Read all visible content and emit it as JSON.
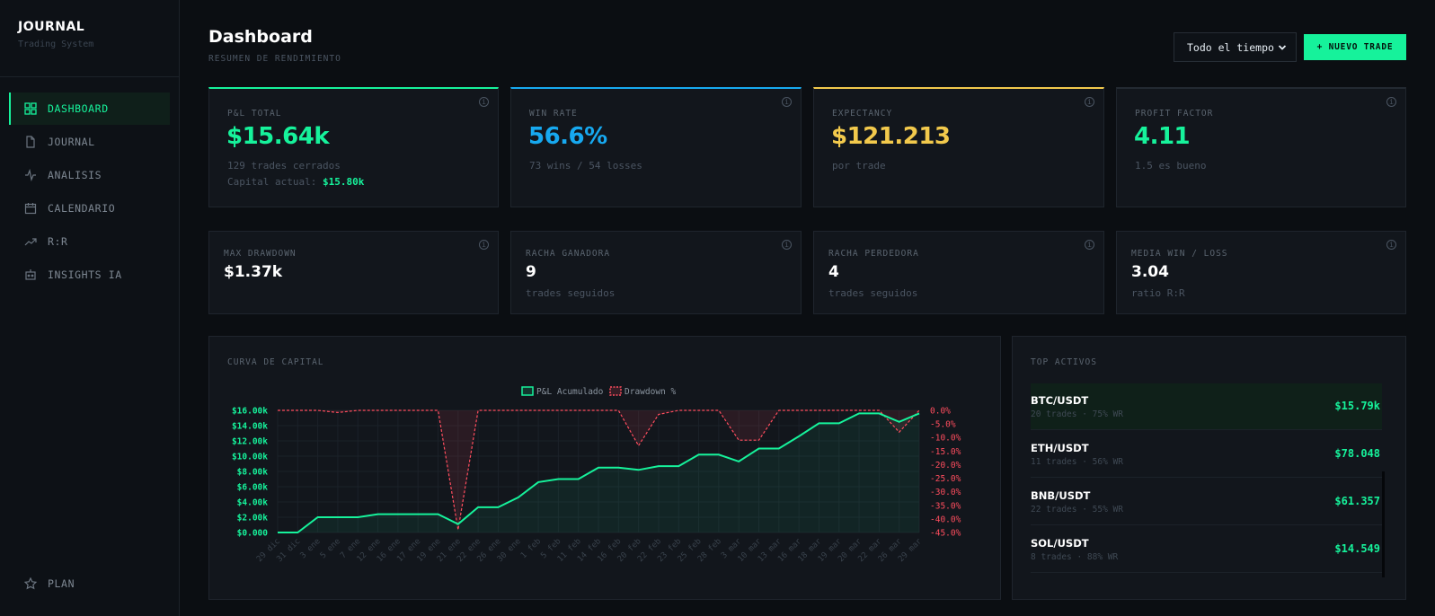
{
  "brand": {
    "title": "JOURNAL",
    "subtitle": "Trading System"
  },
  "nav": [
    {
      "label": "DASHBOARD",
      "icon": "grid-icon",
      "active": true
    },
    {
      "label": "JOURNAL",
      "icon": "file-icon"
    },
    {
      "label": "ANALISIS",
      "icon": "activity-icon"
    },
    {
      "label": "CALENDARIO",
      "icon": "calendar-icon"
    },
    {
      "label": "R:R",
      "icon": "trending-up-icon"
    },
    {
      "label": "INSIGHTS IA",
      "icon": "robot-icon"
    }
  ],
  "nav_bottom": {
    "label": "PLAN",
    "icon": "star-icon"
  },
  "header": {
    "title": "Dashboard",
    "subtitle": "RESUMEN DE RENDIMIENTO",
    "period_select": "Todo el tiempo",
    "new_trade_label": "+ NUEVO TRADE"
  },
  "kpis": [
    {
      "label": "P&L TOTAL",
      "value": "$15.64k",
      "sub1": "129 trades cerrados",
      "sub2_prefix": "Capital actual:",
      "sub2_value": "$15.80k",
      "accent": "#16f29b"
    },
    {
      "label": "WIN RATE",
      "value": "56.6%",
      "sub1": "73 wins / 54 losses",
      "accent": "#17a9f0"
    },
    {
      "label": "EXPECTANCY",
      "value": "$121.213",
      "sub1": "por trade",
      "accent": "#f2c94c"
    },
    {
      "label": "PROFIT FACTOR",
      "value": "4.11",
      "sub1": "1.5 es bueno",
      "accent": "#16f29b"
    }
  ],
  "stats": [
    {
      "label": "MAX DRAWDOWN",
      "value": "$1.37k",
      "sub": ""
    },
    {
      "label": "RACHA GANADORA",
      "value": "9",
      "sub": "trades seguidos"
    },
    {
      "label": "RACHA PERDEDORA",
      "value": "4",
      "sub": "trades seguidos"
    },
    {
      "label": "MEDIA WIN / LOSS",
      "value": "3.04",
      "sub": "ratio R:R"
    }
  ],
  "equity_panel_title": "CURVA DE CAPITAL",
  "chart_data": {
    "type": "line",
    "title": "CURVA DE CAPITAL",
    "x": [
      "29 dic",
      "31 dic",
      "3 ene",
      "5 ene",
      "7 ene",
      "12 ene",
      "16 ene",
      "17 ene",
      "19 ene",
      "21 ene",
      "22 ene",
      "26 ene",
      "30 ene",
      "1 feb",
      "5 feb",
      "11 feb",
      "14 feb",
      "16 feb",
      "20 feb",
      "22 feb",
      "23 feb",
      "25 feb",
      "28 feb",
      "3 mar",
      "10 mar",
      "13 mar",
      "16 mar",
      "18 mar",
      "19 mar",
      "20 mar",
      "22 mar",
      "26 mar",
      "29 mar"
    ],
    "series": [
      {
        "name": "P&L Acumulado",
        "axis": "left",
        "color": "#16f29b",
        "values": [
          0,
          0,
          2000,
          2000,
          2000,
          2400,
          2400,
          2400,
          2400,
          1100,
          3300,
          3300,
          4600,
          6600,
          7000,
          7000,
          8500,
          8500,
          8200,
          8700,
          8700,
          10200,
          10200,
          9300,
          11000,
          11000,
          12600,
          14300,
          14300,
          15600,
          15600,
          14500,
          15600
        ]
      },
      {
        "name": "Drawdown %",
        "axis": "right",
        "color": "#ff4d5e",
        "values": [
          0,
          0,
          0,
          -0.8,
          0,
          0,
          0,
          0,
          0,
          -44,
          0,
          0,
          0,
          0,
          0,
          0,
          0,
          0,
          -13,
          -1.5,
          0,
          0,
          0,
          -11,
          -11,
          0,
          0,
          0,
          0,
          0,
          0,
          -8,
          0
        ]
      }
    ],
    "left_axis": {
      "ticks": [
        "$0.000",
        "$2.00k",
        "$4.00k",
        "$6.00k",
        "$8.00k",
        "$10.00k",
        "$12.00k",
        "$14.00k",
        "$16.00k"
      ],
      "ylim": [
        0,
        16000
      ]
    },
    "right_axis": {
      "ticks": [
        "0.0%",
        "-5.0%",
        "-10.0%",
        "-15.0%",
        "-20.0%",
        "-25.0%",
        "-30.0%",
        "-35.0%",
        "-40.0%",
        "-45.0%"
      ],
      "ylim": [
        -45,
        0
      ]
    },
    "legend_position": "top-center",
    "grid": true
  },
  "top_assets": {
    "title": "TOP ACTIVOS",
    "items": [
      {
        "symbol": "BTC/USDT",
        "meta": "20 trades · 75% WR",
        "value": "$15.79k"
      },
      {
        "symbol": "ETH/USDT",
        "meta": "11 trades · 56% WR",
        "value": "$78.048"
      },
      {
        "symbol": "BNB/USDT",
        "meta": "22 trades · 55% WR",
        "value": "$61.357"
      },
      {
        "symbol": "SOL/USDT",
        "meta": "8 trades · 88% WR",
        "value": "$14.549"
      }
    ]
  }
}
